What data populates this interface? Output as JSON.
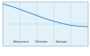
{
  "chart_data": {
    "type": "line",
    "x": [
      0,
      10,
      20,
      30,
      40,
      50,
      60,
      70,
      80,
      90,
      100
    ],
    "values": [
      95,
      90,
      83,
      76,
      69,
      62,
      56,
      51,
      47,
      45,
      44
    ],
    "color": "#3d8fd1",
    "xlim": [
      0,
      100
    ],
    "ylim": [
      0,
      100
    ],
    "xticks": [
      0,
      20,
      40,
      60,
      80,
      100
    ],
    "yticks": [
      0,
      50,
      100
    ],
    "grid": true,
    "tick_labels": false,
    "annotations": [
      {
        "x": 12,
        "text": "Wisconsin"
      },
      {
        "x": 38,
        "text": "Illinoian"
      },
      {
        "x": 62,
        "text": "Kansan"
      }
    ]
  }
}
